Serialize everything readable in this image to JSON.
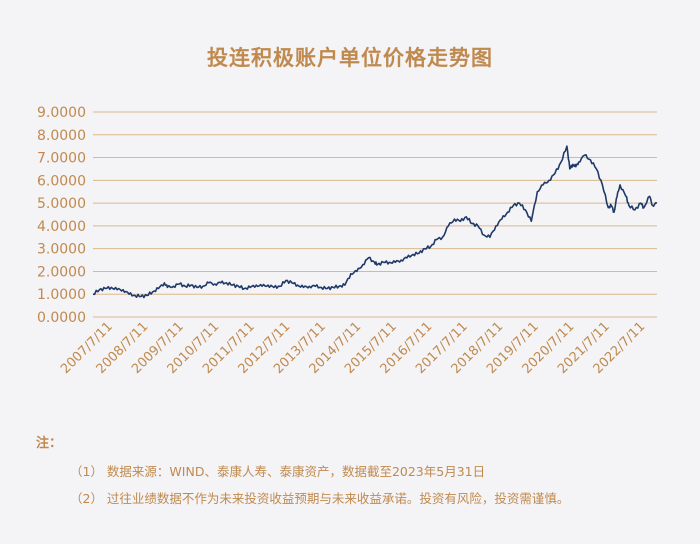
{
  "chart_data": {
    "type": "line",
    "title": "投连积极账户单位价格走势图",
    "xlabel": "",
    "ylabel": "",
    "ylim": [
      0,
      9
    ],
    "grid": "horizontal",
    "line_color": "#1f3a68",
    "y_ticks": [
      "9.0000",
      "8.0000",
      "7.0000",
      "6.0000",
      "5.0000",
      "4.0000",
      "3.0000",
      "2.0000",
      "1.0000",
      "0.0000"
    ],
    "x_ticks": [
      "2007/7/11",
      "2008/7/11",
      "2009/7/11",
      "2010/7/11",
      "2011/7/11",
      "2012/7/11",
      "2013/7/11",
      "2014/7/11",
      "2015/7/11",
      "2016/7/11",
      "2017/7/11",
      "2018/7/11",
      "2019/7/11",
      "2020/7/11",
      "2021/7/11",
      "2022/7/11"
    ],
    "series": [
      {
        "x": [
          "2007-07-11",
          "2007-09",
          "2007-11",
          "2008-01",
          "2008-03",
          "2008-05",
          "2008-07",
          "2008-09",
          "2008-11",
          "2009-01",
          "2009-03",
          "2009-05",
          "2009-07",
          "2009-08",
          "2009-10",
          "2009-12",
          "2010-02",
          "2010-04",
          "2010-06",
          "2010-08",
          "2010-10",
          "2010-12",
          "2011-02",
          "2011-04",
          "2011-06",
          "2011-08",
          "2011-10",
          "2011-12",
          "2012-02",
          "2012-04",
          "2012-06",
          "2012-08",
          "2012-10",
          "2012-12",
          "2013-02",
          "2013-04",
          "2013-06",
          "2013-08",
          "2013-10",
          "2013-12",
          "2014-02",
          "2014-04",
          "2014-06",
          "2014-08",
          "2014-10",
          "2014-12",
          "2015-02",
          "2015-04",
          "2015-06",
          "2015-07",
          "2015-09",
          "2015-11",
          "2016-01",
          "2016-03",
          "2016-05",
          "2016-07",
          "2016-09",
          "2016-11",
          "2017-01",
          "2017-03",
          "2017-05",
          "2017-07",
          "2017-09",
          "2017-11",
          "2018-01",
          "2018-03",
          "2018-05",
          "2018-07",
          "2018-09",
          "2018-11",
          "2019-01",
          "2019-03",
          "2019-05",
          "2019-07",
          "2019-09",
          "2019-11",
          "2020-01",
          "2020-03",
          "2020-05",
          "2020-07",
          "2020-09",
          "2020-11",
          "2020-12",
          "2021-01",
          "2021-02",
          "2021-03",
          "2021-05",
          "2021-07",
          "2021-09",
          "2021-11",
          "2022-01",
          "2022-02",
          "2022-03",
          "2022-04",
          "2022-05",
          "2022-07",
          "2022-08",
          "2022-10",
          "2022-12",
          "2023-01",
          "2023-03",
          "2023-04",
          "2023-05-31"
        ],
        "values": [
          1.0,
          1.2,
          1.25,
          1.3,
          1.2,
          1.2,
          1.0,
          0.95,
          0.9,
          0.95,
          1.1,
          1.25,
          1.5,
          1.3,
          1.35,
          1.45,
          1.35,
          1.4,
          1.3,
          1.35,
          1.5,
          1.45,
          1.5,
          1.5,
          1.4,
          1.35,
          1.25,
          1.3,
          1.4,
          1.35,
          1.4,
          1.3,
          1.35,
          1.6,
          1.5,
          1.4,
          1.3,
          1.35,
          1.35,
          1.3,
          1.25,
          1.3,
          1.35,
          1.4,
          1.9,
          2.0,
          2.3,
          2.6,
          2.4,
          2.3,
          2.4,
          2.4,
          2.4,
          2.5,
          2.6,
          2.75,
          2.8,
          3.0,
          3.1,
          3.4,
          3.5,
          4.0,
          4.3,
          4.2,
          4.4,
          4.1,
          4.0,
          3.6,
          3.5,
          4.0,
          4.3,
          4.6,
          4.9,
          5.0,
          4.7,
          4.2,
          5.5,
          5.8,
          6.0,
          6.3,
          6.8,
          7.5,
          6.5,
          6.7,
          6.6,
          6.8,
          7.1,
          6.9,
          6.5,
          5.8,
          4.8,
          4.9,
          4.6,
          5.3,
          5.8,
          5.3,
          4.9,
          4.7,
          5.0,
          4.8,
          5.3,
          4.9,
          5.0
        ]
      }
    ]
  },
  "notes": {
    "title": "注：",
    "items": [
      "（1） 数据来源：WIND、泰康人寿、泰康资产，数据截至2023年5月31日",
      "（2） 过往业绩数据不作为未来投资收益预期与未来收益承诺。投资有风险，投资需谨慎。"
    ]
  }
}
